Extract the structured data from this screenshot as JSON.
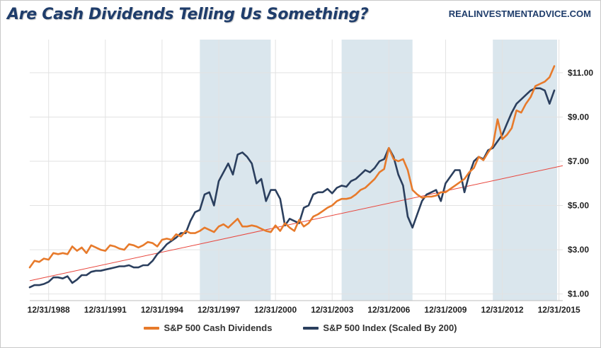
{
  "header": {
    "title": "Are Cash Dividends Telling Us Something?",
    "source": "REALINVESTMENTADVICE.COM"
  },
  "legend": {
    "dividends_label": "S&P 500 Cash Dividends",
    "index_label": "S&P 500 Index (Scaled By 200)"
  },
  "chart_data": {
    "type": "line",
    "title": "Are Cash Dividends Telling Us Something?",
    "x_labels": [
      "12/31/1988",
      "12/31/1991",
      "12/31/1994",
      "12/31/1997",
      "12/31/2000",
      "12/31/2003",
      "12/31/2006",
      "12/31/2009",
      "12/31/2012",
      "12/31/2015"
    ],
    "x_range": [
      1988,
      2016.2
    ],
    "y_labels": [
      "$1.00",
      "$3.00",
      "$5.00",
      "$7.00",
      "$9.00",
      "$11.00"
    ],
    "y_range": [
      0.7,
      12.5
    ],
    "y_axis_position": "right",
    "shaded_periods": [
      [
        1997.0,
        2000.75
      ],
      [
        2004.5,
        2008.25
      ],
      [
        2012.5,
        2015.9
      ]
    ],
    "trend_line": {
      "name": "",
      "color": "#e8453c",
      "x": [
        1988,
        2016.2
      ],
      "y": [
        1.6,
        6.8
      ]
    },
    "colors": {
      "dividends": "#e77a2b",
      "index": "#2b3f5e",
      "shade": "#d3e2ea",
      "grid": "#e2e2e2"
    },
    "series": [
      {
        "name": "S&P 500 Cash Dividends",
        "color": "#e77a2b",
        "x": [
          1988,
          1988.25,
          1988.5,
          1988.75,
          1989,
          1989.25,
          1989.5,
          1989.75,
          1990,
          1990.25,
          1990.5,
          1990.75,
          1991,
          1991.25,
          1991.5,
          1991.75,
          1992,
          1992.25,
          1992.5,
          1992.75,
          1993,
          1993.25,
          1993.5,
          1993.75,
          1994,
          1994.25,
          1994.5,
          1994.75,
          1995,
          1995.25,
          1995.5,
          1995.75,
          1996,
          1996.25,
          1996.5,
          1996.75,
          1997,
          1997.25,
          1997.5,
          1997.75,
          1998,
          1998.25,
          1998.5,
          1998.75,
          1999,
          1999.25,
          1999.5,
          1999.75,
          2000,
          2000.25,
          2000.5,
          2000.75,
          2001,
          2001.25,
          2001.5,
          2001.75,
          2002,
          2002.25,
          2002.5,
          2002.75,
          2003,
          2003.25,
          2003.5,
          2003.75,
          2004,
          2004.25,
          2004.5,
          2004.75,
          2005,
          2005.25,
          2005.5,
          2005.75,
          2006,
          2006.25,
          2006.5,
          2006.75,
          2007,
          2007.25,
          2007.5,
          2007.75,
          2008,
          2008.25,
          2008.5,
          2008.75,
          2009,
          2009.25,
          2009.5,
          2009.75,
          2010,
          2010.25,
          2010.5,
          2010.75,
          2011,
          2011.25,
          2011.5,
          2011.75,
          2012,
          2012.25,
          2012.5,
          2012.75,
          2013,
          2013.25,
          2013.5,
          2013.75,
          2014,
          2014.25,
          2014.5,
          2014.75,
          2015,
          2015.25,
          2015.5,
          2015.75
        ],
        "y": [
          2.2,
          2.5,
          2.45,
          2.6,
          2.55,
          2.85,
          2.8,
          2.85,
          2.8,
          3.15,
          2.95,
          3.1,
          2.85,
          3.2,
          3.1,
          3.0,
          2.95,
          3.2,
          3.15,
          3.05,
          3.0,
          3.25,
          3.2,
          3.1,
          3.2,
          3.35,
          3.3,
          3.15,
          3.45,
          3.5,
          3.45,
          3.7,
          3.6,
          3.85,
          3.75,
          3.75,
          3.85,
          4.0,
          3.9,
          3.8,
          4.05,
          4.15,
          4.0,
          4.2,
          4.4,
          4.05,
          4.05,
          4.1,
          4.05,
          3.95,
          3.85,
          3.8,
          4.1,
          3.85,
          4.2,
          4.0,
          3.85,
          4.35,
          4.05,
          4.2,
          4.5,
          4.6,
          4.75,
          4.9,
          5.0,
          5.2,
          5.3,
          5.3,
          5.35,
          5.5,
          5.7,
          5.8,
          6.0,
          6.2,
          6.5,
          6.65,
          7.6,
          7.1,
          7.0,
          7.1,
          6.6,
          5.7,
          5.5,
          5.35,
          5.4,
          5.4,
          5.45,
          5.6,
          5.6,
          5.75,
          5.9,
          6.05,
          6.2,
          6.5,
          6.7,
          7.2,
          7.05,
          7.4,
          7.7,
          8.9,
          8.0,
          8.2,
          8.5,
          9.3,
          9.2,
          9.6,
          9.9,
          10.4,
          10.5,
          10.6,
          10.8,
          11.3
        ]
      },
      {
        "name": "S&P 500 Index (Scaled By 200)",
        "color": "#2b3f5e",
        "x": [
          1988,
          1988.25,
          1988.5,
          1988.75,
          1989,
          1989.25,
          1989.5,
          1989.75,
          1990,
          1990.25,
          1990.5,
          1990.75,
          1991,
          1991.25,
          1991.5,
          1991.75,
          1992,
          1992.25,
          1992.5,
          1992.75,
          1993,
          1993.25,
          1993.5,
          1993.75,
          1994,
          1994.25,
          1994.5,
          1994.75,
          1995,
          1995.25,
          1995.5,
          1995.75,
          1996,
          1996.25,
          1996.5,
          1996.75,
          1997,
          1997.25,
          1997.5,
          1997.75,
          1998,
          1998.25,
          1998.5,
          1998.75,
          1999,
          1999.25,
          1999.5,
          1999.75,
          2000,
          2000.25,
          2000.5,
          2000.75,
          2001,
          2001.25,
          2001.5,
          2001.75,
          2002,
          2002.25,
          2002.5,
          2002.75,
          2003,
          2003.25,
          2003.5,
          2003.75,
          2004,
          2004.25,
          2004.5,
          2004.75,
          2005,
          2005.25,
          2005.5,
          2005.75,
          2006,
          2006.25,
          2006.5,
          2006.75,
          2007,
          2007.25,
          2007.5,
          2007.75,
          2008,
          2008.25,
          2008.5,
          2008.75,
          2009,
          2009.25,
          2009.5,
          2009.75,
          2010,
          2010.25,
          2010.5,
          2010.75,
          2011,
          2011.25,
          2011.5,
          2011.75,
          2012,
          2012.25,
          2012.5,
          2012.75,
          2013,
          2013.25,
          2013.5,
          2013.75,
          2014,
          2014.25,
          2014.5,
          2014.75,
          2015,
          2015.25,
          2015.5,
          2015.75
        ],
        "y": [
          1.3,
          1.4,
          1.4,
          1.45,
          1.55,
          1.75,
          1.75,
          1.7,
          1.8,
          1.5,
          1.65,
          1.85,
          1.85,
          2.0,
          2.05,
          2.05,
          2.1,
          2.15,
          2.2,
          2.25,
          2.25,
          2.3,
          2.2,
          2.2,
          2.3,
          2.3,
          2.5,
          2.8,
          3.0,
          3.25,
          3.4,
          3.55,
          3.75,
          3.75,
          4.3,
          4.7,
          4.8,
          5.5,
          5.6,
          5.0,
          6.1,
          6.5,
          6.9,
          6.4,
          7.3,
          7.4,
          7.2,
          6.9,
          6.0,
          6.2,
          5.2,
          5.7,
          5.7,
          5.3,
          4.1,
          4.4,
          4.3,
          4.2,
          4.9,
          5.0,
          5.5,
          5.6,
          5.6,
          5.75,
          5.55,
          5.8,
          5.9,
          5.85,
          6.1,
          6.2,
          6.4,
          6.6,
          6.5,
          6.7,
          7.0,
          7.1,
          7.6,
          7.2,
          6.4,
          5.9,
          4.5,
          4.0,
          4.6,
          5.2,
          5.5,
          5.6,
          5.7,
          5.2,
          6.0,
          6.3,
          6.6,
          6.6,
          5.6,
          6.4,
          7.0,
          7.2,
          7.1,
          7.5,
          7.6,
          7.9,
          8.2,
          8.7,
          9.2,
          9.6,
          9.8,
          10.0,
          10.2,
          10.3,
          10.3,
          10.2,
          9.6,
          10.2
        ]
      }
    ]
  }
}
